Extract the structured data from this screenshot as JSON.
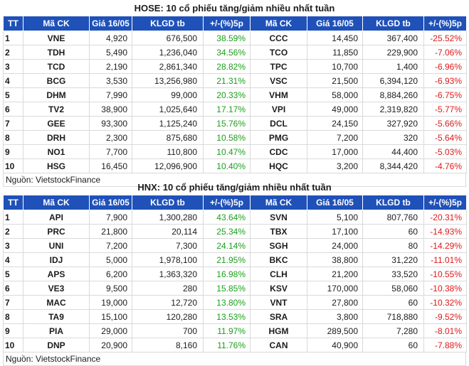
{
  "hose": {
    "title": "HOSE: 10 cổ phiếu tăng/giảm nhiều nhất tuần",
    "headers": [
      "TT",
      "Mã CK",
      "Giá 16/05",
      "KLGD tb",
      "+/-(%)5p",
      "Mã CK",
      "Giá 16/05",
      "KLGD tb",
      "+/-(%)5p"
    ],
    "rows": [
      {
        "tt": "1",
        "gain": {
          "code": "VNE",
          "price": "4,920",
          "vol": "676,500",
          "chg": "38.59%"
        },
        "loss": {
          "code": "CCC",
          "price": "14,450",
          "vol": "367,400",
          "chg": "-25.52%"
        }
      },
      {
        "tt": "2",
        "gain": {
          "code": "TDH",
          "price": "5,490",
          "vol": "1,236,040",
          "chg": "34.56%"
        },
        "loss": {
          "code": "TCO",
          "price": "11,850",
          "vol": "229,900",
          "chg": "-7.06%"
        }
      },
      {
        "tt": "3",
        "gain": {
          "code": "TCD",
          "price": "2,190",
          "vol": "2,861,340",
          "chg": "28.82%"
        },
        "loss": {
          "code": "TPC",
          "price": "10,700",
          "vol": "1,400",
          "chg": "-6.96%"
        }
      },
      {
        "tt": "4",
        "gain": {
          "code": "BCG",
          "price": "3,530",
          "vol": "13,256,980",
          "chg": "21.31%"
        },
        "loss": {
          "code": "VSC",
          "price": "21,500",
          "vol": "6,394,120",
          "chg": "-6.93%"
        }
      },
      {
        "tt": "5",
        "gain": {
          "code": "DHM",
          "price": "7,990",
          "vol": "99,000",
          "chg": "20.33%"
        },
        "loss": {
          "code": "VHM",
          "price": "58,000",
          "vol": "8,884,260",
          "chg": "-6.75%"
        }
      },
      {
        "tt": "6",
        "gain": {
          "code": "TV2",
          "price": "38,900",
          "vol": "1,025,640",
          "chg": "17.17%"
        },
        "loss": {
          "code": "VPI",
          "price": "49,000",
          "vol": "2,319,820",
          "chg": "-5.77%"
        }
      },
      {
        "tt": "7",
        "gain": {
          "code": "GEE",
          "price": "93,300",
          "vol": "1,125,240",
          "chg": "15.76%"
        },
        "loss": {
          "code": "DCL",
          "price": "24,150",
          "vol": "327,920",
          "chg": "-5.66%"
        }
      },
      {
        "tt": "8",
        "gain": {
          "code": "DRH",
          "price": "2,300",
          "vol": "875,680",
          "chg": "10.58%"
        },
        "loss": {
          "code": "PMG",
          "price": "7,200",
          "vol": "320",
          "chg": "-5.64%"
        }
      },
      {
        "tt": "9",
        "gain": {
          "code": "NO1",
          "price": "7,700",
          "vol": "110,800",
          "chg": "10.47%"
        },
        "loss": {
          "code": "CDC",
          "price": "17,000",
          "vol": "44,400",
          "chg": "-5.03%"
        }
      },
      {
        "tt": "10",
        "gain": {
          "code": "HSG",
          "price": "16,450",
          "vol": "12,096,900",
          "chg": "10.40%"
        },
        "loss": {
          "code": "HQC",
          "price": "3,200",
          "vol": "8,344,420",
          "chg": "-4.76%"
        }
      }
    ],
    "source": "Nguồn: VietstockFinance"
  },
  "hnx": {
    "title": "HNX: 10 cổ phiếu tăng/giảm nhiều nhất tuần",
    "headers": [
      "TT",
      "Mã CK",
      "Giá 16/05",
      "KLGD tb",
      "+/-(%)5p",
      "Mã CK",
      "Giá 16/05",
      "KLGD tb",
      "+/-(%)5p"
    ],
    "rows": [
      {
        "tt": "1",
        "gain": {
          "code": "API",
          "price": "7,900",
          "vol": "1,300,280",
          "chg": "43.64%"
        },
        "loss": {
          "code": "SVN",
          "price": "5,100",
          "vol": "807,760",
          "chg": "-20.31%"
        }
      },
      {
        "tt": "2",
        "gain": {
          "code": "PRC",
          "price": "21,800",
          "vol": "20,114",
          "chg": "25.34%"
        },
        "loss": {
          "code": "TBX",
          "price": "17,100",
          "vol": "60",
          "chg": "-14.93%"
        }
      },
      {
        "tt": "3",
        "gain": {
          "code": "UNI",
          "price": "7,200",
          "vol": "7,300",
          "chg": "24.14%"
        },
        "loss": {
          "code": "SGH",
          "price": "24,000",
          "vol": "80",
          "chg": "-14.29%"
        }
      },
      {
        "tt": "4",
        "gain": {
          "code": "IDJ",
          "price": "5,000",
          "vol": "1,978,100",
          "chg": "21.95%"
        },
        "loss": {
          "code": "BKC",
          "price": "38,800",
          "vol": "31,220",
          "chg": "-11.01%"
        }
      },
      {
        "tt": "5",
        "gain": {
          "code": "APS",
          "price": "6,200",
          "vol": "1,363,320",
          "chg": "16.98%"
        },
        "loss": {
          "code": "CLH",
          "price": "21,200",
          "vol": "33,520",
          "chg": "-10.55%"
        }
      },
      {
        "tt": "6",
        "gain": {
          "code": "VE3",
          "price": "9,500",
          "vol": "280",
          "chg": "15.85%"
        },
        "loss": {
          "code": "KSV",
          "price": "170,000",
          "vol": "58,060",
          "chg": "-10.38%"
        }
      },
      {
        "tt": "7",
        "gain": {
          "code": "MAC",
          "price": "19,000",
          "vol": "12,720",
          "chg": "13.80%"
        },
        "loss": {
          "code": "VNT",
          "price": "27,800",
          "vol": "60",
          "chg": "-10.32%"
        }
      },
      {
        "tt": "8",
        "gain": {
          "code": "TA9",
          "price": "15,100",
          "vol": "120,280",
          "chg": "13.53%"
        },
        "loss": {
          "code": "SRA",
          "price": "3,800",
          "vol": "718,880",
          "chg": "-9.52%"
        }
      },
      {
        "tt": "9",
        "gain": {
          "code": "PIA",
          "price": "29,000",
          "vol": "700",
          "chg": "11.97%"
        },
        "loss": {
          "code": "HGM",
          "price": "289,500",
          "vol": "7,280",
          "chg": "-8.01%"
        }
      },
      {
        "tt": "10",
        "gain": {
          "code": "DNP",
          "price": "20,900",
          "vol": "8,160",
          "chg": "11.76%"
        },
        "loss": {
          "code": "CAN",
          "price": "40,900",
          "vol": "60",
          "chg": "-7.88%"
        }
      }
    ],
    "source": "Nguồn: VietstockFinance"
  },
  "colors": {
    "header_bg": "#1f51b9",
    "header_text": "#ffffff",
    "gain_text": "#1c9e1c",
    "loss_text": "#e01818",
    "border": "#dadada"
  }
}
